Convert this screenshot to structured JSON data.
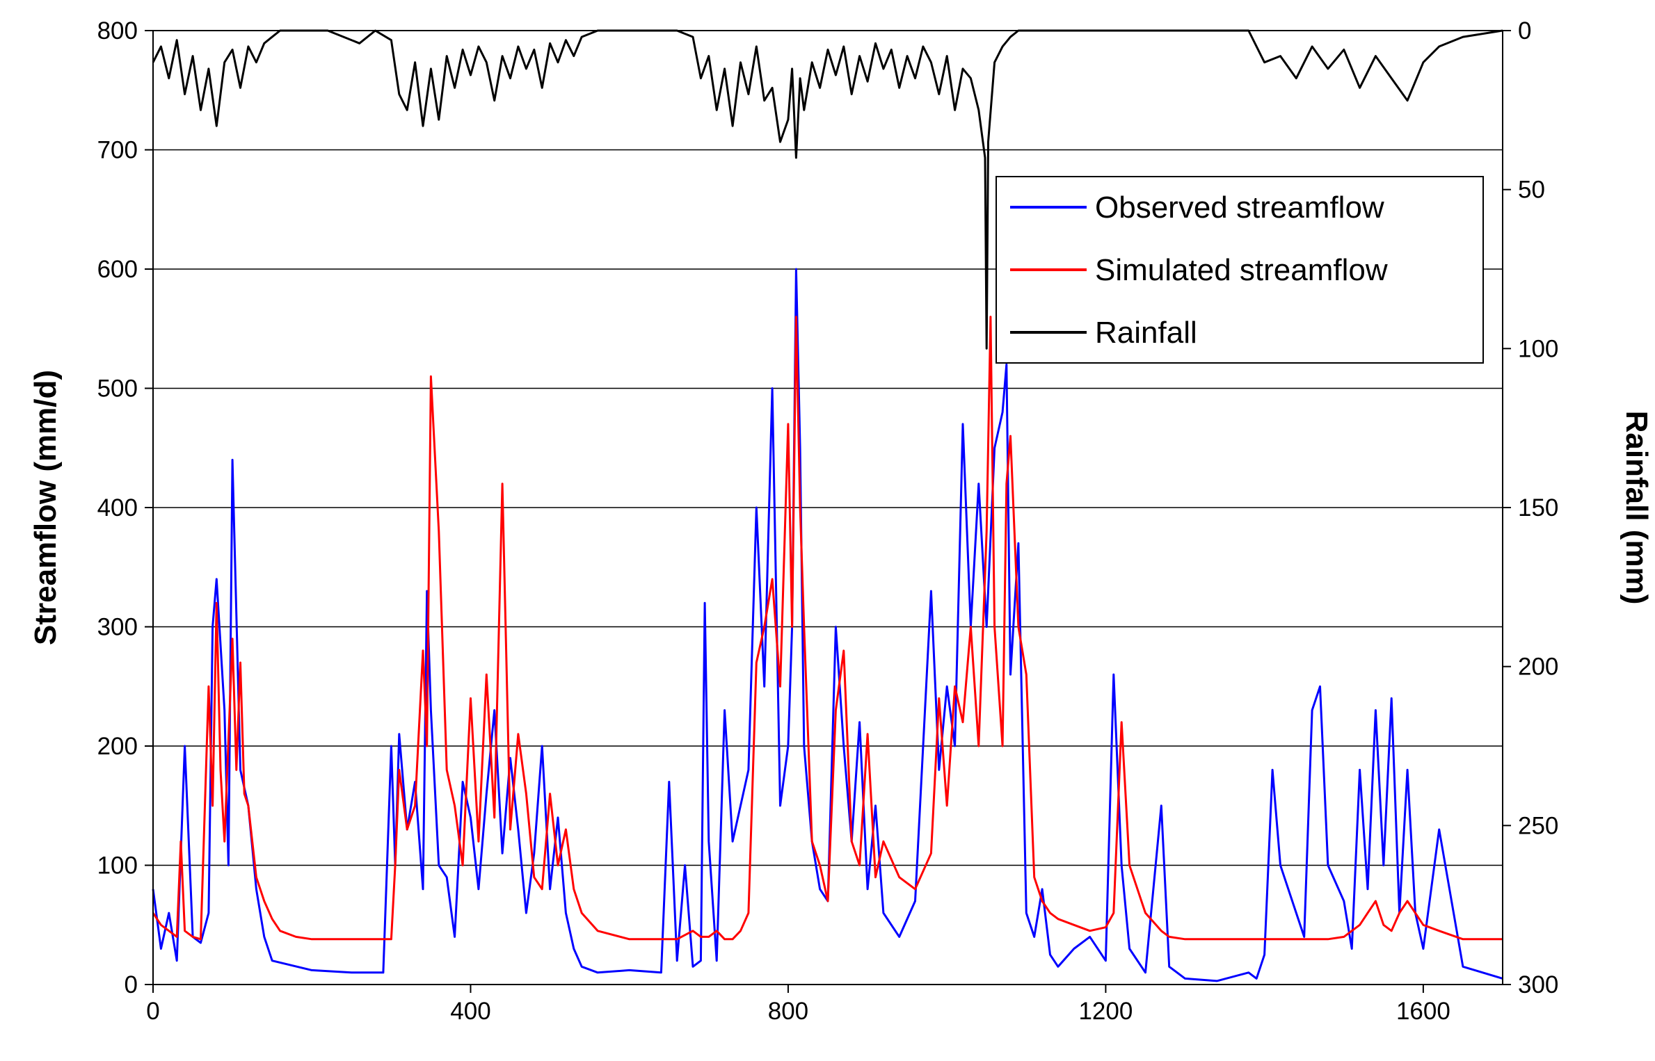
{
  "chart_data": {
    "type": "line",
    "title": "",
    "xlabel": "",
    "ylabel": "Streamflow (mm/d)",
    "y2label": "Rainfall (mm)",
    "xlim": [
      0,
      1700
    ],
    "ylim": [
      0,
      800
    ],
    "y2lim": [
      0,
      300
    ],
    "y2_inverted": true,
    "x_ticks": [
      0,
      400,
      800,
      1200,
      1600
    ],
    "y_ticks": [
      0,
      100,
      200,
      300,
      400,
      500,
      600,
      700,
      800
    ],
    "y2_ticks": [
      0,
      50,
      100,
      150,
      200,
      250,
      300
    ],
    "grid": "horizontal",
    "legend_position": "top-right",
    "series": [
      {
        "name": "Observed streamflow",
        "axis": "left",
        "color": "#0000ff",
        "x": [
          0,
          10,
          20,
          30,
          40,
          50,
          60,
          70,
          75,
          80,
          90,
          95,
          100,
          110,
          120,
          130,
          140,
          150,
          200,
          250,
          290,
          300,
          305,
          310,
          320,
          330,
          340,
          345,
          350,
          360,
          370,
          380,
          390,
          400,
          410,
          420,
          430,
          440,
          450,
          460,
          470,
          480,
          490,
          500,
          510,
          520,
          530,
          540,
          560,
          600,
          640,
          650,
          660,
          670,
          680,
          690,
          695,
          700,
          710,
          720,
          730,
          740,
          750,
          760,
          770,
          780,
          790,
          800,
          805,
          810,
          815,
          820,
          830,
          840,
          850,
          860,
          870,
          880,
          890,
          900,
          910,
          920,
          940,
          960,
          980,
          990,
          1000,
          1010,
          1020,
          1030,
          1040,
          1050,
          1060,
          1070,
          1075,
          1080,
          1090,
          1100,
          1110,
          1120,
          1130,
          1140,
          1160,
          1180,
          1200,
          1210,
          1220,
          1230,
          1250,
          1270,
          1280,
          1300,
          1340,
          1380,
          1390,
          1400,
          1410,
          1420,
          1440,
          1450,
          1460,
          1470,
          1480,
          1500,
          1510,
          1520,
          1530,
          1540,
          1550,
          1560,
          1570,
          1580,
          1590,
          1600,
          1620,
          1650,
          1700
        ],
        "values": [
          80,
          30,
          60,
          20,
          200,
          40,
          35,
          60,
          300,
          340,
          230,
          100,
          440,
          180,
          150,
          80,
          40,
          20,
          12,
          10,
          10,
          200,
          100,
          210,
          130,
          170,
          80,
          330,
          230,
          100,
          90,
          40,
          170,
          140,
          80,
          160,
          230,
          110,
          190,
          130,
          60,
          110,
          200,
          80,
          140,
          60,
          30,
          15,
          10,
          12,
          10,
          170,
          20,
          100,
          15,
          20,
          320,
          120,
          20,
          230,
          120,
          150,
          180,
          400,
          250,
          500,
          150,
          200,
          300,
          600,
          450,
          200,
          120,
          80,
          70,
          300,
          200,
          120,
          220,
          80,
          150,
          60,
          40,
          70,
          330,
          180,
          250,
          200,
          470,
          300,
          420,
          300,
          450,
          480,
          520,
          260,
          370,
          60,
          40,
          80,
          25,
          15,
          30,
          40,
          20,
          260,
          100,
          30,
          10,
          150,
          15,
          5,
          3,
          10,
          5,
          25,
          180,
          100,
          60,
          40,
          230,
          250,
          100,
          70,
          30,
          180,
          80,
          230,
          100,
          240,
          60,
          180,
          60,
          30,
          130,
          15,
          5
        ]
      },
      {
        "name": "Simulated streamflow",
        "axis": "left",
        "color": "#ff0000",
        "x": [
          0,
          10,
          20,
          30,
          35,
          40,
          50,
          60,
          70,
          75,
          80,
          85,
          90,
          100,
          105,
          110,
          115,
          120,
          130,
          140,
          150,
          160,
          180,
          200,
          250,
          290,
          300,
          305,
          310,
          320,
          330,
          340,
          345,
          350,
          360,
          370,
          380,
          390,
          400,
          410,
          420,
          430,
          440,
          450,
          460,
          470,
          480,
          490,
          500,
          510,
          520,
          530,
          540,
          560,
          600,
          640,
          660,
          680,
          690,
          700,
          710,
          720,
          730,
          740,
          750,
          760,
          770,
          780,
          790,
          800,
          805,
          810,
          815,
          820,
          830,
          840,
          850,
          860,
          870,
          880,
          890,
          900,
          910,
          920,
          940,
          960,
          980,
          990,
          1000,
          1010,
          1020,
          1030,
          1040,
          1050,
          1055,
          1060,
          1070,
          1075,
          1080,
          1090,
          1100,
          1110,
          1120,
          1130,
          1140,
          1160,
          1180,
          1200,
          1210,
          1220,
          1230,
          1250,
          1270,
          1280,
          1300,
          1340,
          1380,
          1400,
          1440,
          1480,
          1500,
          1510,
          1520,
          1530,
          1540,
          1550,
          1560,
          1570,
          1580,
          1600,
          1620,
          1650,
          1700
        ],
        "values": [
          60,
          50,
          45,
          40,
          120,
          45,
          40,
          38,
          250,
          150,
          320,
          180,
          120,
          290,
          180,
          270,
          160,
          150,
          90,
          70,
          55,
          45,
          40,
          38,
          38,
          38,
          38,
          100,
          180,
          130,
          150,
          280,
          200,
          510,
          380,
          180,
          150,
          100,
          240,
          120,
          260,
          140,
          420,
          130,
          210,
          160,
          90,
          80,
          160,
          100,
          130,
          80,
          60,
          45,
          38,
          38,
          38,
          45,
          40,
          40,
          45,
          38,
          38,
          45,
          60,
          270,
          300,
          340,
          250,
          470,
          300,
          560,
          400,
          300,
          120,
          100,
          70,
          230,
          280,
          120,
          100,
          210,
          90,
          120,
          90,
          80,
          110,
          240,
          150,
          250,
          220,
          300,
          200,
          380,
          560,
          300,
          200,
          420,
          460,
          300,
          260,
          90,
          70,
          60,
          55,
          50,
          45,
          48,
          60,
          220,
          100,
          60,
          45,
          40,
          38,
          38,
          38,
          38,
          38,
          38,
          40,
          45,
          50,
          60,
          70,
          50,
          45,
          60,
          70,
          50,
          45,
          38,
          38
        ]
      },
      {
        "name": "Rainfall",
        "axis": "right",
        "color": "#000000",
        "x": [
          0,
          10,
          20,
          30,
          40,
          50,
          60,
          70,
          80,
          90,
          100,
          110,
          120,
          130,
          140,
          150,
          160,
          170,
          180,
          200,
          220,
          240,
          260,
          280,
          300,
          310,
          320,
          330,
          340,
          350,
          360,
          370,
          380,
          390,
          400,
          410,
          420,
          430,
          440,
          450,
          460,
          470,
          480,
          490,
          500,
          510,
          520,
          530,
          540,
          560,
          580,
          600,
          620,
          640,
          660,
          680,
          690,
          700,
          710,
          720,
          730,
          740,
          750,
          760,
          770,
          780,
          790,
          800,
          805,
          810,
          815,
          820,
          830,
          840,
          850,
          860,
          870,
          880,
          890,
          900,
          910,
          920,
          930,
          940,
          950,
          960,
          970,
          980,
          990,
          1000,
          1010,
          1020,
          1030,
          1040,
          1048,
          1050,
          1052,
          1060,
          1070,
          1080,
          1090,
          1100,
          1110,
          1120,
          1140,
          1160,
          1180,
          1200,
          1220,
          1240,
          1260,
          1280,
          1300,
          1340,
          1380,
          1400,
          1420,
          1440,
          1460,
          1480,
          1500,
          1520,
          1540,
          1560,
          1580,
          1600,
          1620,
          1650,
          1700
        ],
        "values": [
          10,
          5,
          15,
          3,
          20,
          8,
          25,
          12,
          30,
          10,
          6,
          18,
          5,
          10,
          4,
          2,
          0,
          0,
          0,
          0,
          0,
          2,
          4,
          0,
          3,
          20,
          25,
          10,
          30,
          12,
          28,
          8,
          18,
          6,
          14,
          5,
          10,
          22,
          8,
          15,
          5,
          12,
          6,
          18,
          4,
          10,
          3,
          8,
          2,
          0,
          0,
          0,
          0,
          0,
          0,
          2,
          15,
          8,
          25,
          12,
          30,
          10,
          20,
          5,
          22,
          18,
          35,
          28,
          12,
          40,
          15,
          25,
          10,
          18,
          6,
          14,
          5,
          20,
          8,
          16,
          4,
          12,
          6,
          18,
          8,
          15,
          5,
          10,
          20,
          8,
          25,
          12,
          15,
          25,
          40,
          100,
          35,
          10,
          5,
          2,
          0,
          0,
          0,
          0,
          0,
          0,
          0,
          0,
          0,
          0,
          0,
          0,
          0,
          0,
          0,
          10,
          8,
          15,
          5,
          12,
          6,
          18,
          8,
          15,
          22,
          10,
          5,
          2,
          0
        ]
      }
    ]
  }
}
